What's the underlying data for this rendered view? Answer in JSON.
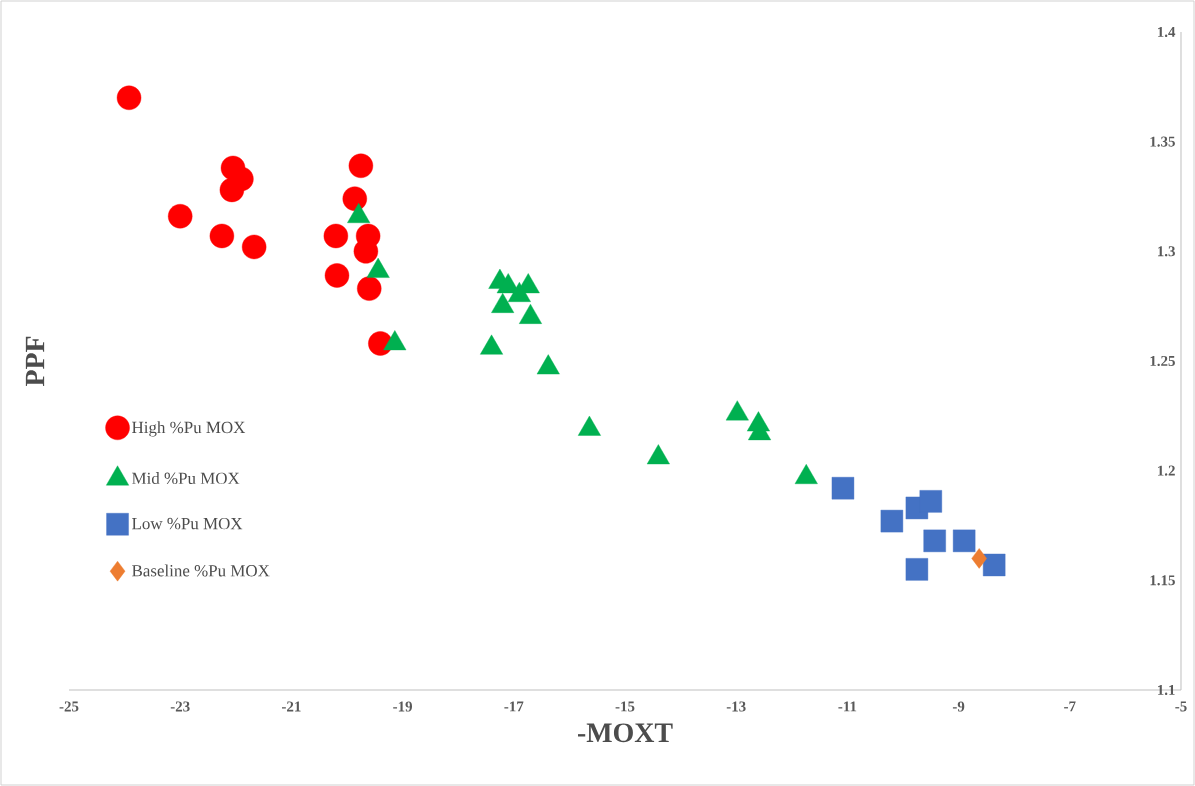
{
  "chart_data": {
    "type": "scatter",
    "xlabel": "-MOXT",
    "ylabel": "PPF",
    "xlim": [
      -25,
      -5
    ],
    "xticks": [
      -25,
      -23,
      -21,
      -19,
      -17,
      -15,
      -13,
      -11,
      -9,
      -7,
      -5
    ],
    "ylim": [
      1.1,
      1.4
    ],
    "yticks": [
      1.1,
      1.15,
      1.2,
      1.25,
      1.3,
      1.35,
      1.4
    ],
    "legend": "left",
    "series": [
      {
        "name": "High %Pu MOX",
        "color": "#ff0000",
        "marker": "circle",
        "x": [
          -23.92,
          -23.0,
          -22.05,
          -21.9,
          -22.07,
          -22.25,
          -21.67,
          -19.75,
          -19.86,
          -20.2,
          -19.62,
          -19.66,
          -20.18,
          -19.6,
          -19.4
        ],
        "values": [
          1.37,
          1.316,
          1.338,
          1.333,
          1.328,
          1.307,
          1.302,
          1.339,
          1.324,
          1.307,
          1.307,
          1.3,
          1.289,
          1.283,
          1.258
        ]
      },
      {
        "name": "Mid %Pu MOX",
        "color": "#00b050",
        "marker": "triangle",
        "x": [
          -19.79,
          -19.44,
          -19.14,
          -17.25,
          -17.1,
          -16.74,
          -16.9,
          -17.2,
          -16.7,
          -17.4,
          -16.38,
          -15.64,
          -14.4,
          -12.98,
          -12.6,
          -12.58,
          -11.74
        ],
        "values": [
          1.316,
          1.291,
          1.258,
          1.286,
          1.284,
          1.284,
          1.28,
          1.275,
          1.27,
          1.256,
          1.247,
          1.219,
          1.206,
          1.226,
          1.221,
          1.217,
          1.197
        ]
      },
      {
        "name": "Low %Pu MOX",
        "color": "#4472c4",
        "marker": "square",
        "x": [
          -11.08,
          -10.2,
          -9.75,
          -9.5,
          -9.43,
          -8.9,
          -8.36,
          -9.75
        ],
        "values": [
          1.192,
          1.177,
          1.183,
          1.186,
          1.168,
          1.168,
          1.157,
          1.155
        ]
      },
      {
        "name": "Baseline %Pu MOX",
        "color": "#ed7d31",
        "marker": "diamond",
        "x": [
          -8.63
        ],
        "values": [
          1.16
        ]
      }
    ]
  }
}
